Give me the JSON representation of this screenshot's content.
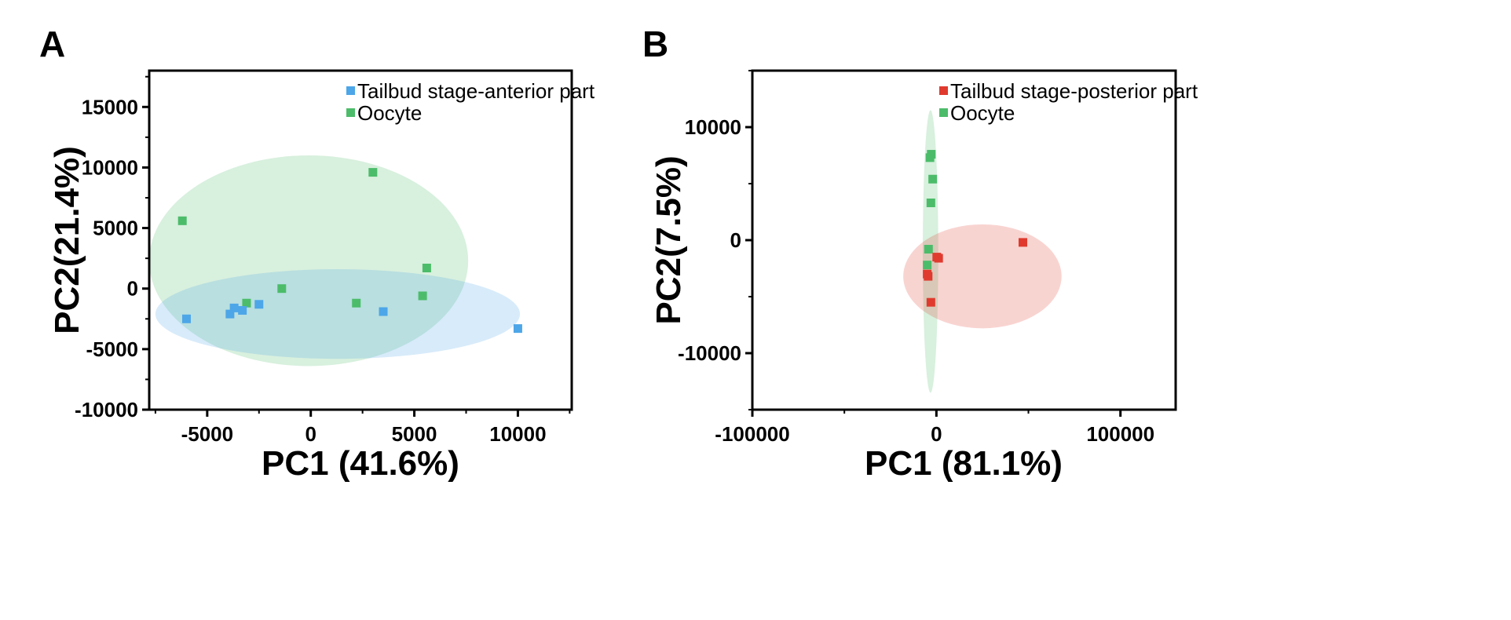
{
  "chart_data": [
    {
      "type": "scatter",
      "panel_label": "A",
      "title": "",
      "xlabel": "PC1 (41.6%)",
      "ylabel": "PC2(21.4%)",
      "xlim": [
        -7800,
        12600
      ],
      "ylim": [
        -10000,
        18000
      ],
      "xticks": [
        -5000,
        0,
        5000,
        10000
      ],
      "yticks": [
        -10000,
        -5000,
        0,
        5000,
        10000,
        15000
      ],
      "grid": false,
      "legend_position": "top-right",
      "series": [
        {
          "name": "Tailbud stage-anterior part",
          "color": "#4da6e8",
          "points": [
            [
              -6000,
              -2500
            ],
            [
              -3900,
              -2100
            ],
            [
              -3700,
              -1600
            ],
            [
              -3300,
              -1800
            ],
            [
              -2500,
              -1300
            ],
            [
              3500,
              -1900
            ],
            [
              10000,
              -3300
            ]
          ],
          "ellipse": {
            "cx": 1300,
            "cy": -2100,
            "rx": 8800,
            "ry": 3700
          }
        },
        {
          "name": "Oocyte",
          "color": "#4cbc6a",
          "points": [
            [
              -6200,
              5600
            ],
            [
              -3100,
              -1200
            ],
            [
              -1400,
              0
            ],
            [
              2200,
              -1200
            ],
            [
              3000,
              9600
            ],
            [
              5400,
              -600
            ],
            [
              5600,
              1700
            ]
          ],
          "ellipse": {
            "cx": -100,
            "cy": 2300,
            "rx": 7700,
            "ry": 8700
          }
        }
      ]
    },
    {
      "type": "scatter",
      "panel_label": "B",
      "title": "",
      "xlabel": "PC1 (81.1%)",
      "ylabel": "PC2(7.5%)",
      "xlim": [
        -100000,
        130000
      ],
      "ylim": [
        -15000,
        15000
      ],
      "xticks": [
        -100000,
        0,
        100000
      ],
      "yticks": [
        -10000,
        0,
        10000
      ],
      "grid": false,
      "legend_position": "top-right",
      "series": [
        {
          "name": "Tailbud stage-posterior part",
          "color": "#e03a2e",
          "points": [
            [
              -5000,
              -3000
            ],
            [
              -4500,
              -3200
            ],
            [
              -3000,
              -5500
            ],
            [
              200,
              -1500
            ],
            [
              1200,
              -1600
            ],
            [
              47000,
              -200
            ]
          ],
          "ellipse": {
            "cx": 25000,
            "cy": -3200,
            "rx": 43000,
            "ry": 4600
          }
        },
        {
          "name": "Oocyte",
          "color": "#4cbc6a",
          "points": [
            [
              -3500,
              7300
            ],
            [
              -2800,
              7600
            ],
            [
              -2000,
              5400
            ],
            [
              -3000,
              3300
            ],
            [
              -4300,
              -800
            ],
            [
              -5000,
              -2200
            ]
          ],
          "ellipse": {
            "cx": -3200,
            "cy": -1000,
            "rx": 4200,
            "ry": 12500
          }
        }
      ]
    }
  ]
}
